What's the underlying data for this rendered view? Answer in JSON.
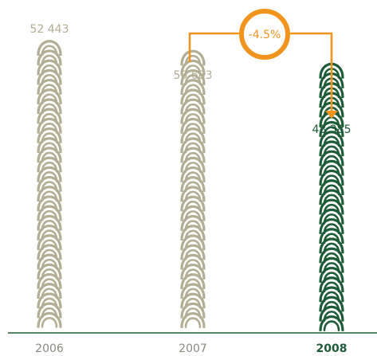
{
  "chart_data": {
    "type": "bar",
    "categories": [
      "2006",
      "2007",
      "2008"
    ],
    "values": [
      52443,
      50683,
      48385
    ],
    "value_labels": [
      "52 443",
      "50 683",
      "48 385"
    ],
    "highlight_index": 2,
    "change_label": "-4.5%",
    "colors": {
      "muted": "#b2ad93",
      "highlight": "#1e5b37",
      "accent": "#f0941e",
      "axis": "#1e5b37",
      "muted_text": "#8b8a7d"
    },
    "grid": false,
    "legend": "none"
  }
}
